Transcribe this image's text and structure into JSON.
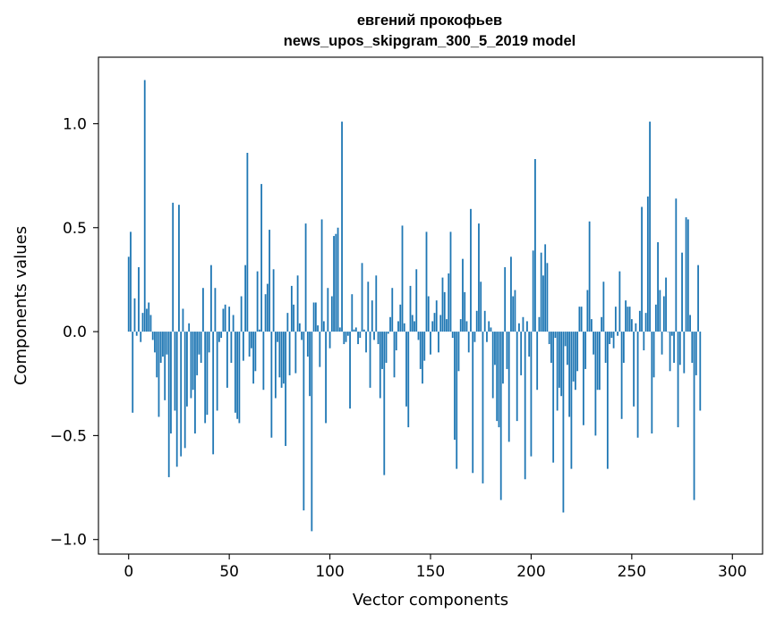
{
  "chart_data": {
    "type": "bar",
    "title": "евгений прокофьев",
    "subtitle": "news_upos_skipgram_300_5_2019 model",
    "xlabel": "Vector components",
    "ylabel": "Components values",
    "xlim": [
      -15,
      315
    ],
    "ylim": [
      -1.07,
      1.32
    ],
    "xticks": [
      0,
      50,
      100,
      150,
      200,
      250,
      300
    ],
    "xtick_labels": [
      "0",
      "50",
      "100",
      "150",
      "200",
      "250",
      "300"
    ],
    "yticks": [
      -1.0,
      -0.5,
      0.0,
      0.5,
      1.0
    ],
    "ytick_labels": [
      "−1.0",
      "−0.5",
      "0.0",
      "0.5",
      "1.0"
    ],
    "bar_color": "#1f77b4",
    "grid": false,
    "values": [
      0.36,
      0.48,
      -0.39,
      0.16,
      -0.02,
      0.31,
      -0.05,
      0.09,
      1.21,
      0.11,
      0.14,
      0.08,
      -0.04,
      -0.1,
      -0.22,
      -0.41,
      -0.15,
      -0.12,
      -0.33,
      -0.11,
      -0.7,
      -0.49,
      0.62,
      -0.38,
      -0.65,
      0.61,
      -0.6,
      0.11,
      -0.56,
      -0.36,
      0.04,
      -0.32,
      -0.28,
      -0.49,
      -0.21,
      -0.11,
      -0.15,
      0.21,
      -0.44,
      -0.4,
      -0.1,
      0.32,
      -0.59,
      0.21,
      -0.38,
      -0.05,
      -0.03,
      0.11,
      0.13,
      -0.27,
      0.12,
      -0.15,
      0.08,
      -0.39,
      -0.42,
      -0.44,
      0.17,
      -0.14,
      0.32,
      0.86,
      -0.12,
      -0.08,
      -0.25,
      -0.19,
      0.29,
      0.01,
      0.71,
      -0.28,
      0.18,
      0.23,
      0.49,
      -0.51,
      0.3,
      -0.32,
      -0.05,
      -0.22,
      -0.27,
      -0.25,
      -0.55,
      0.09,
      -0.21,
      0.22,
      0.13,
      -0.2,
      0.27,
      0.04,
      -0.04,
      -0.86,
      0.52,
      -0.12,
      -0.31,
      -0.96,
      0.14,
      0.14,
      0.03,
      -0.17,
      0.54,
      0.05,
      -0.44,
      0.21,
      -0.08,
      0.17,
      0.46,
      0.47,
      0.5,
      0.02,
      1.01,
      -0.06,
      -0.05,
      -0.02,
      -0.37,
      0.18,
      0.01,
      0.02,
      -0.06,
      -0.03,
      0.33,
      0.01,
      -0.1,
      0.24,
      -0.27,
      0.15,
      -0.04,
      0.27,
      -0.06,
      -0.32,
      -0.18,
      -0.69,
      -0.15,
      -0.01,
      0.07,
      0.21,
      -0.22,
      -0.09,
      0.05,
      0.13,
      0.51,
      0.04,
      -0.36,
      -0.46,
      0.22,
      0.08,
      0.05,
      0.3,
      -0.04,
      -0.18,
      -0.25,
      -0.14,
      0.48,
      0.17,
      -0.11,
      0.05,
      0.09,
      0.15,
      -0.1,
      0.08,
      0.26,
      0.19,
      0.06,
      0.28,
      0.48,
      -0.03,
      -0.52,
      -0.66,
      -0.19,
      0.06,
      0.35,
      0.19,
      0.05,
      -0.1,
      0.59,
      -0.68,
      -0.05,
      0.1,
      0.52,
      0.24,
      -0.73,
      0.1,
      -0.05,
      0.05,
      0.02,
      -0.32,
      -0.16,
      -0.43,
      -0.46,
      -0.81,
      -0.25,
      0.31,
      -0.18,
      -0.53,
      0.36,
      0.17,
      0.2,
      -0.43,
      0.04,
      -0.21,
      0.07,
      -0.71,
      0.05,
      -0.12,
      -0.6,
      0.39,
      0.83,
      -0.28,
      0.07,
      0.38,
      0.27,
      0.42,
      0.33,
      -0.06,
      -0.15,
      -0.63,
      -0.03,
      -0.38,
      -0.27,
      -0.31,
      -0.87,
      -0.07,
      -0.16,
      -0.41,
      -0.66,
      -0.24,
      -0.28,
      -0.19,
      0.12,
      0.12,
      -0.45,
      -0.18,
      0.2,
      0.53,
      0.06,
      -0.11,
      -0.5,
      -0.28,
      -0.28,
      0.07,
      0.24,
      -0.15,
      -0.66,
      -0.06,
      -0.03,
      -0.08,
      0.12,
      -0.02,
      0.29,
      -0.42,
      -0.15,
      0.15,
      0.12,
      0.12,
      0.06,
      -0.36,
      0.04,
      -0.51,
      0.1,
      0.6,
      -0.09,
      0.09,
      0.65,
      1.01,
      -0.49,
      -0.22,
      0.13,
      0.43,
      0.2,
      -0.11,
      0.17,
      0.26,
      0.0,
      -0.19,
      -0.02,
      -0.15,
      0.64,
      -0.46,
      -0.16,
      0.38,
      -0.2,
      0.55,
      0.54,
      0.08,
      -0.15,
      -0.81,
      -0.21,
      0.32,
      -0.38
    ]
  }
}
